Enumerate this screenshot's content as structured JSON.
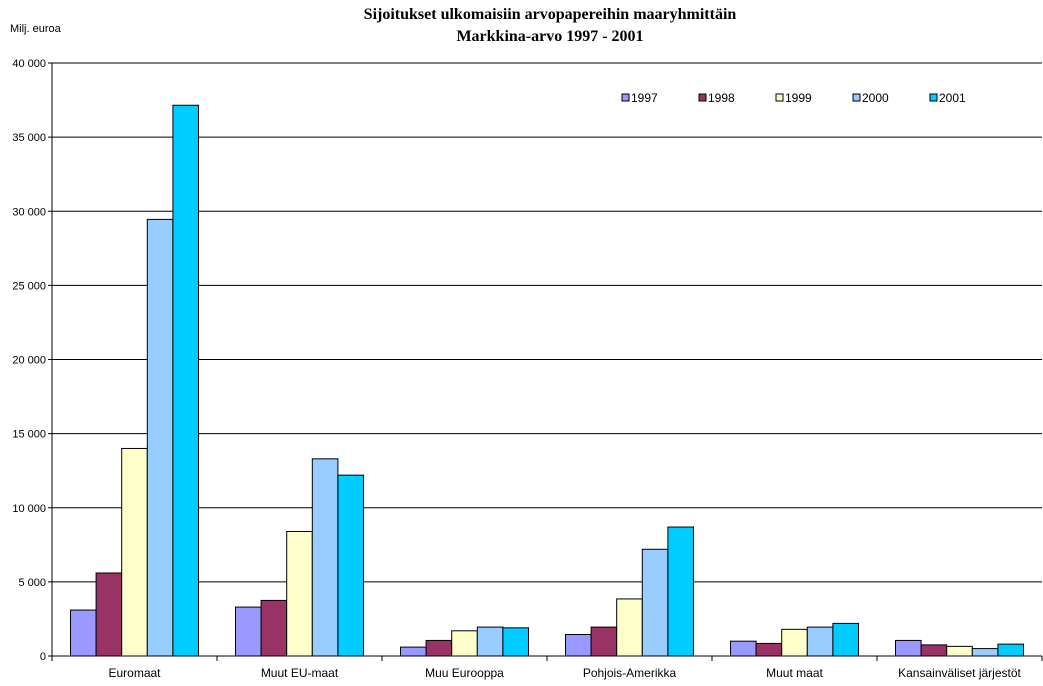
{
  "chart_data": {
    "type": "bar",
    "title": "Sijoitukset ulkomaisiin arvopapereihin maaryhmittäin",
    "subtitle": "Markkina-arvo 1997 - 2001",
    "ylabel": "Milj. euroa",
    "xlabel": "",
    "ylim": [
      0,
      40000
    ],
    "yticks": [
      0,
      5000,
      10000,
      15000,
      20000,
      25000,
      30000,
      35000,
      40000
    ],
    "ytick_labels": [
      "0",
      "5 000",
      "10 000",
      "15 000",
      "20 000",
      "25 000",
      "30 000",
      "35 000",
      "40 000"
    ],
    "grid": "horizontal",
    "legend_position": "top-right",
    "categories": [
      "Euromaat",
      "Muut EU-maat",
      "Muu Eurooppa",
      "Pohjois-Amerikka",
      "Muut maat",
      "Kansainväliset järjestöt"
    ],
    "series": [
      {
        "name": "1997",
        "color": "#9999FF",
        "values": [
          3100,
          3300,
          600,
          1450,
          1000,
          1050
        ]
      },
      {
        "name": "1998",
        "color": "#993366",
        "values": [
          5600,
          3750,
          1050,
          1950,
          850,
          750
        ]
      },
      {
        "name": "1999",
        "color": "#FFFFCC",
        "values": [
          14000,
          8400,
          1700,
          3850,
          1800,
          650
        ]
      },
      {
        "name": "2000",
        "color": "#99CCFF",
        "values": [
          29450,
          13300,
          1950,
          7200,
          1950,
          500
        ]
      },
      {
        "name": "2001",
        "color": "#00CCFF",
        "values": [
          37150,
          12200,
          1900,
          8700,
          2200,
          800
        ]
      }
    ]
  }
}
